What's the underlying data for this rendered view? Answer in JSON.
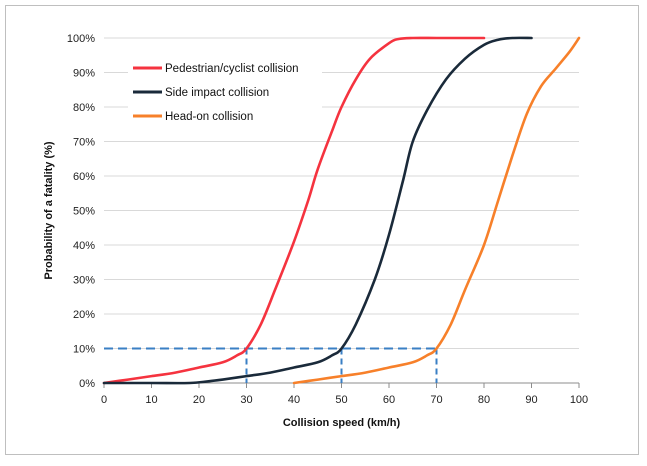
{
  "chart_data": {
    "type": "line",
    "title": "",
    "xlabel": "Collision speed (km/h)",
    "ylabel": "Probability of a fatality (%)",
    "xlim": [
      0,
      100
    ],
    "ylim": [
      0,
      100
    ],
    "x_ticks": [
      0,
      10,
      20,
      30,
      40,
      50,
      60,
      70,
      80,
      90,
      100
    ],
    "y_ticks": [
      0,
      10,
      20,
      30,
      40,
      50,
      60,
      70,
      80,
      90,
      100
    ],
    "y_tick_suffix": "%",
    "grid": "horizontal",
    "legend_position": "top-left",
    "series": [
      {
        "name": "Pedestrian/cyclist collision",
        "color": "#f5333f",
        "x": [
          0,
          5,
          10,
          15,
          20,
          25,
          28,
          30,
          33,
          36,
          40,
          43,
          45,
          48,
          50,
          53,
          56,
          60,
          62,
          65,
          70,
          75,
          80
        ],
        "y": [
          0,
          1,
          2,
          3,
          4.5,
          6,
          8,
          10,
          17,
          27,
          41,
          53,
          62,
          73,
          80,
          88,
          94,
          98.5,
          99.7,
          100,
          100,
          100,
          100
        ]
      },
      {
        "name": "Side impact collision",
        "color": "#1a2a3a",
        "x": [
          0,
          10,
          18,
          22,
          25,
          30,
          35,
          40,
          45,
          48,
          50,
          53,
          57,
          60,
          63,
          65,
          68,
          72,
          76,
          80,
          83,
          86,
          90
        ],
        "y": [
          0,
          0,
          0,
          0.5,
          1,
          2,
          3,
          4.5,
          6,
          8,
          10,
          17,
          30,
          43,
          59,
          70,
          79,
          88,
          94,
          98,
          99.5,
          100,
          100
        ]
      },
      {
        "name": "Head-on collision",
        "color": "#f7802a",
        "x": [
          40,
          45,
          50,
          55,
          60,
          65,
          68,
          70,
          73,
          76,
          80,
          83,
          86,
          89,
          92,
          95,
          98,
          100
        ],
        "y": [
          0,
          1,
          2,
          3,
          4.5,
          6,
          8,
          10,
          17,
          27,
          40,
          53,
          66,
          78,
          86,
          91,
          96,
          100
        ]
      }
    ],
    "annotations": [
      {
        "type": "dashed-threshold",
        "color": "#3a7fc4",
        "y": 10,
        "x_end": 70,
        "drops_at_x": [
          30,
          50,
          70
        ]
      }
    ]
  }
}
